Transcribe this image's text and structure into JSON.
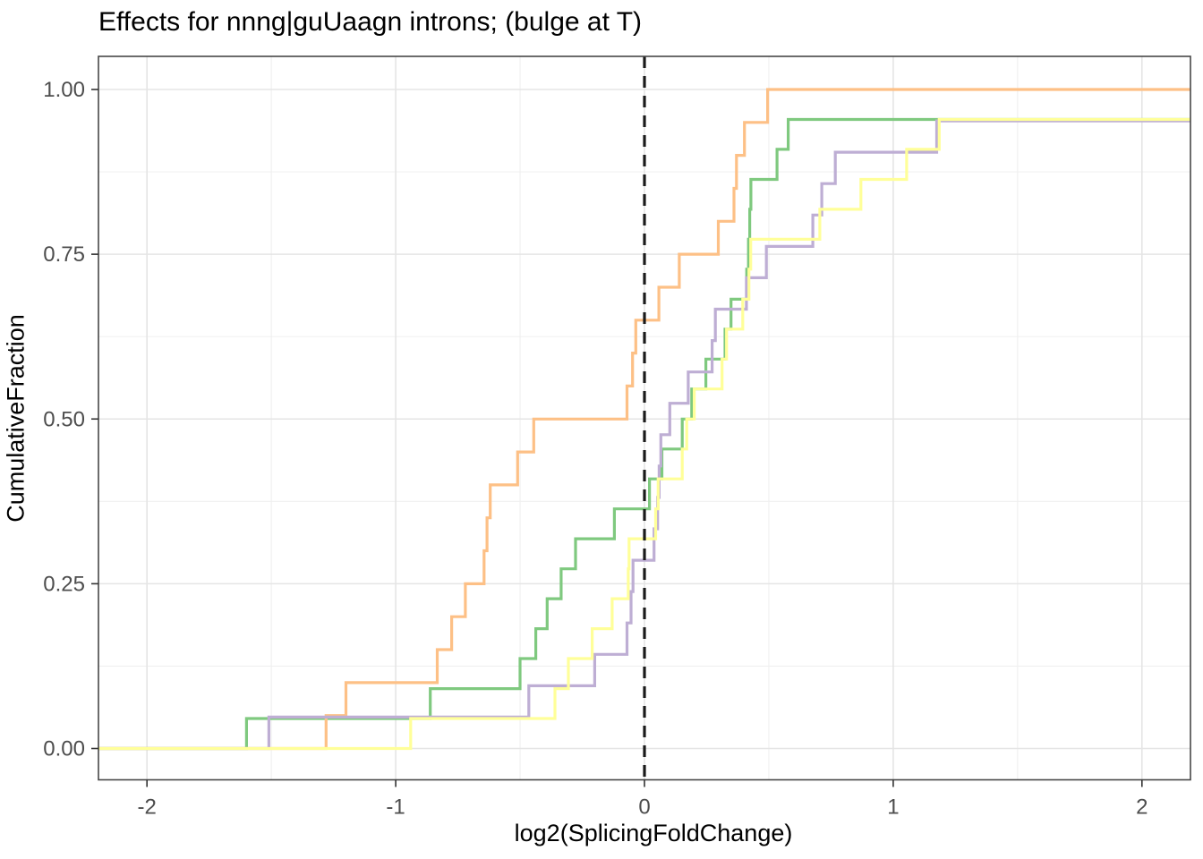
{
  "title": "Effects for nnng|guUaagn introns; (bulge at T)",
  "chart_data": {
    "type": "step-ecdf",
    "title": "Effects for nnng|guUaagn introns; (bulge at T)",
    "xlabel": "log2(SplicingFoldChange)",
    "ylabel": "CumulativeFraction",
    "xlim": [
      -2.195,
      2.195
    ],
    "ylim": [
      0,
      1
    ],
    "x_ticks": [
      {
        "v": -2,
        "label": "-2"
      },
      {
        "v": -1,
        "label": "-1"
      },
      {
        "v": 0,
        "label": "0"
      },
      {
        "v": 1,
        "label": "1"
      },
      {
        "v": 2,
        "label": "2"
      }
    ],
    "x_minor": [
      -1.5,
      -0.5,
      0.5,
      1.5
    ],
    "y_ticks": [
      {
        "v": 0,
        "label": "0.00"
      },
      {
        "v": 0.25,
        "label": "0.25"
      },
      {
        "v": 0.5,
        "label": "0.50"
      },
      {
        "v": 0.75,
        "label": "0.75"
      },
      {
        "v": 1,
        "label": "1.00"
      }
    ],
    "y_minor": [
      0.125,
      0.375,
      0.625,
      0.875
    ],
    "grid": {
      "major_color": "#e5e5e5",
      "minor_color": "#f0f0f0"
    },
    "panel_border_color": "#474747",
    "tick_color": "#333333",
    "tick_label_color": "#4d4d4d",
    "ref_line": {
      "x": 0,
      "color": "#1a1a1a",
      "style": "dashed"
    },
    "series": [
      {
        "name": "green",
        "color": "#7FC97F",
        "points": [
          [
            -1.6,
            0.0455
          ],
          [
            -0.861,
            0.0909
          ],
          [
            -0.5,
            0.1364
          ],
          [
            -0.437,
            0.1818
          ],
          [
            -0.391,
            0.2273
          ],
          [
            -0.335,
            0.2727
          ],
          [
            -0.277,
            0.3182
          ],
          [
            -0.121,
            0.3636
          ],
          [
            0.02,
            0.4091
          ],
          [
            0.07,
            0.4545
          ],
          [
            0.152,
            0.5
          ],
          [
            0.19,
            0.5455
          ],
          [
            0.247,
            0.5909
          ],
          [
            0.324,
            0.6364
          ],
          [
            0.348,
            0.6818
          ],
          [
            0.411,
            0.7273
          ],
          [
            0.418,
            0.7727
          ],
          [
            0.423,
            0.8182
          ],
          [
            0.428,
            0.8636
          ],
          [
            0.533,
            0.9091
          ],
          [
            0.578,
            0.9545
          ]
        ]
      },
      {
        "name": "orange",
        "color": "#FDC086",
        "points": [
          [
            -1.28,
            0.05
          ],
          [
            -1.2,
            0.1
          ],
          [
            -0.833,
            0.15
          ],
          [
            -0.775,
            0.2
          ],
          [
            -0.72,
            0.25
          ],
          [
            -0.645,
            0.3
          ],
          [
            -0.633,
            0.35
          ],
          [
            -0.62,
            0.4
          ],
          [
            -0.51,
            0.45
          ],
          [
            -0.445,
            0.5
          ],
          [
            -0.07,
            0.55
          ],
          [
            -0.048,
            0.6
          ],
          [
            -0.035,
            0.65
          ],
          [
            0.058,
            0.7
          ],
          [
            0.14,
            0.75
          ],
          [
            0.297,
            0.8
          ],
          [
            0.36,
            0.85
          ],
          [
            0.37,
            0.9
          ],
          [
            0.402,
            0.95
          ],
          [
            0.495,
            1.0
          ]
        ]
      },
      {
        "name": "purple",
        "color": "#BEAED4",
        "points": [
          [
            -1.51,
            0.0476
          ],
          [
            -0.465,
            0.0952
          ],
          [
            -0.2,
            0.1429
          ],
          [
            -0.07,
            0.1905
          ],
          [
            -0.054,
            0.2381
          ],
          [
            -0.046,
            0.2857
          ],
          [
            0.0385,
            0.3333
          ],
          [
            0.053,
            0.381
          ],
          [
            0.059,
            0.4286
          ],
          [
            0.066,
            0.4762
          ],
          [
            0.102,
            0.5238
          ],
          [
            0.176,
            0.5714
          ],
          [
            0.272,
            0.619
          ],
          [
            0.285,
            0.6667
          ],
          [
            0.41,
            0.7143
          ],
          [
            0.49,
            0.7619
          ],
          [
            0.677,
            0.8095
          ],
          [
            0.713,
            0.8571
          ],
          [
            0.767,
            0.9048
          ],
          [
            1.175,
            0.9524
          ]
        ]
      },
      {
        "name": "yellow",
        "color": "#FFFF99",
        "points": [
          [
            -0.94,
            0.0455
          ],
          [
            -0.36,
            0.0909
          ],
          [
            -0.306,
            0.1364
          ],
          [
            -0.21,
            0.1818
          ],
          [
            -0.13,
            0.2273
          ],
          [
            -0.065,
            0.2727
          ],
          [
            -0.062,
            0.3182
          ],
          [
            0.045,
            0.3636
          ],
          [
            0.055,
            0.4091
          ],
          [
            0.152,
            0.4545
          ],
          [
            0.17,
            0.5
          ],
          [
            0.2,
            0.5455
          ],
          [
            0.312,
            0.5909
          ],
          [
            0.33,
            0.6364
          ],
          [
            0.395,
            0.6818
          ],
          [
            0.42,
            0.7273
          ],
          [
            0.427,
            0.7727
          ],
          [
            0.705,
            0.8182
          ],
          [
            0.87,
            0.8636
          ],
          [
            1.054,
            0.9091
          ],
          [
            1.185,
            0.9545
          ]
        ]
      }
    ]
  }
}
